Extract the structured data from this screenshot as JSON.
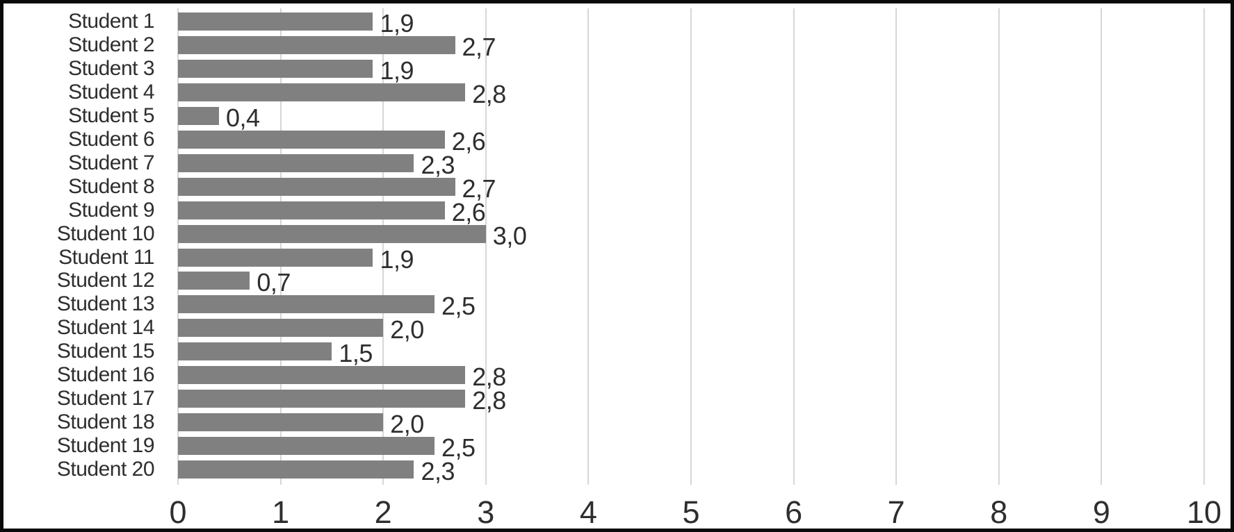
{
  "chart_data": {
    "type": "bar",
    "orientation": "horizontal",
    "title": "",
    "xlabel": "",
    "ylabel": "",
    "grid": true,
    "legend": false,
    "xlim": [
      0,
      10
    ],
    "x_ticks": [
      "0",
      "1",
      "2",
      "3",
      "4",
      "5",
      "6",
      "7",
      "8",
      "9",
      "10"
    ],
    "categories": [
      "Student 1",
      "Student 2",
      "Student 3",
      "Student 4",
      "Student 5",
      "Student 6",
      "Student 7",
      "Student 8",
      "Student 9",
      "Student 10",
      "Student 11",
      "Student 12",
      "Student 13",
      "Student 14",
      "Student 15",
      "Student 16",
      "Student 17",
      "Student 18",
      "Student 19",
      "Student 20"
    ],
    "values": [
      1.9,
      2.7,
      1.9,
      2.8,
      0.4,
      2.6,
      2.3,
      2.7,
      2.6,
      3.0,
      1.9,
      0.7,
      2.5,
      2.0,
      1.5,
      2.8,
      2.8,
      2.0,
      2.5,
      2.3
    ],
    "value_labels": [
      "1,9",
      "2,7",
      "1,9",
      "2,8",
      "0,4",
      "2,6",
      "2,3",
      "2,7",
      "2,6",
      "3,0",
      "1,9",
      "0,7",
      "2,5",
      "2,0",
      "1,5",
      "2,8",
      "2,8",
      "2,0",
      "2,5",
      "2,3"
    ],
    "colors": {
      "bar": "#808080",
      "gridline": "#d6d6d6",
      "text": "#2e2e2e",
      "frame_border": "#0a0a0a",
      "background": "#ffffff"
    }
  }
}
